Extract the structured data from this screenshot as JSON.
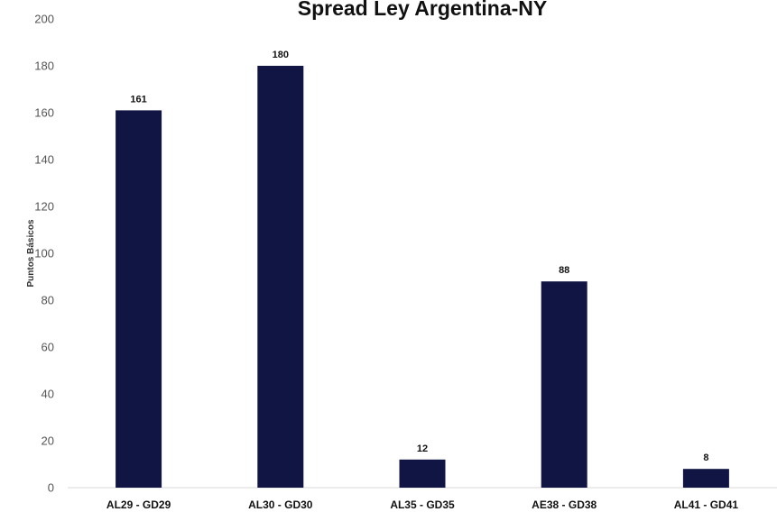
{
  "chart_data": {
    "type": "bar",
    "title": "Spread Ley Argentina-NY",
    "xlabel": "",
    "ylabel": "Puntos Básicos",
    "categories": [
      "AL29 - GD29",
      "AL30 - GD30",
      "AL35 - GD35",
      "AE38 - GD38",
      "AL41 - GD41"
    ],
    "values": [
      161,
      180,
      12,
      88,
      8
    ],
    "data_labels": [
      "161",
      "180",
      "12",
      "88",
      "8"
    ],
    "ylim": [
      0,
      200
    ],
    "yticks": [
      0,
      20,
      40,
      60,
      80,
      100,
      120,
      140,
      160,
      180,
      200
    ],
    "grid": false,
    "legend": "none",
    "bar_color": "#111543"
  }
}
